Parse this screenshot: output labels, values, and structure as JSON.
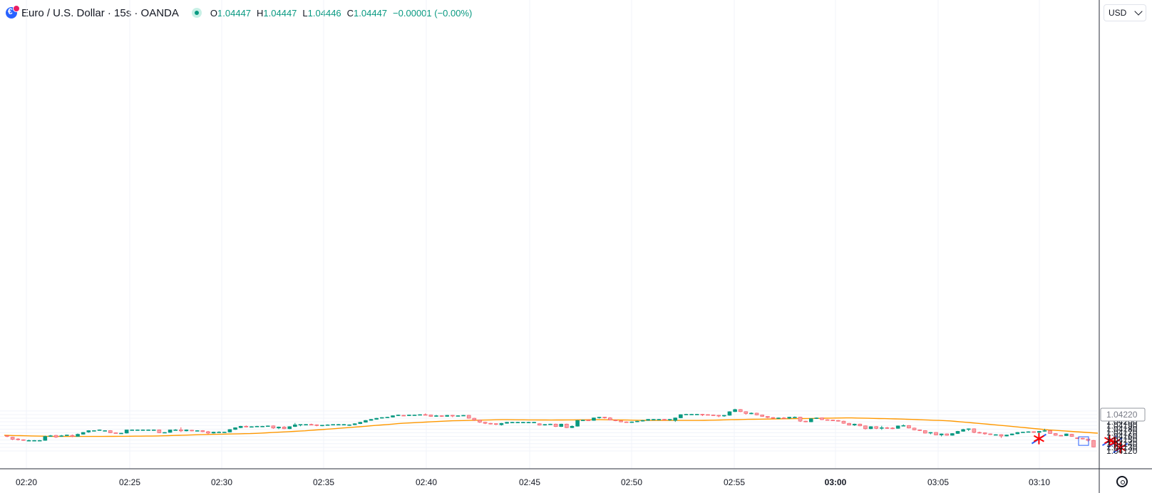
{
  "header": {
    "title": "Euro / U.S. Dollar · 15s · OANDA",
    "ohlc": {
      "o_label": "O",
      "o_value": "1.04447",
      "h_label": "H",
      "h_value": "1.04447",
      "l_label": "L",
      "l_value": "1.04446",
      "c_label": "C",
      "c_value": "1.04447",
      "change": "−0.00001 (−0.00%)"
    }
  },
  "currency_select": {
    "value": "USD"
  },
  "colors": {
    "up": "#089981",
    "down": "#f7525f",
    "ma": "#ff9800",
    "grid": "#f0f3fa",
    "axis": "#131722",
    "marker_red": "#ff0000",
    "marker_blue": "#2962ff"
  },
  "chart_data": {
    "type": "candlestick",
    "ylim": [
      1.0411,
      1.0424
    ],
    "y_ticks": [
      "1.04230",
      "1.04220",
      "1.04210",
      "1.04200",
      "1.04190",
      "1.04180",
      "1.04170",
      "1.04160",
      "1.04150",
      "1.04140",
      "1.04130",
      "1.04120"
    ],
    "y_tick_values": [
      1.0423,
      1.0422,
      1.0421,
      1.042,
      1.0419,
      1.0418,
      1.0417,
      1.0416,
      1.0415,
      1.0414,
      1.0413,
      1.0412
    ],
    "current_price_label": "1.04220",
    "x_ticks": [
      "02:20",
      "02:25",
      "02:30",
      "02:35",
      "02:40",
      "02:45",
      "02:50",
      "02:55",
      "03:00",
      "03:05",
      "03:10"
    ],
    "x_tick_bold": "03:00",
    "candles": [
      [
        1.04162,
        1.04163,
        1.04158,
        1.0416
      ],
      [
        1.04158,
        1.04159,
        1.0415,
        1.04152
      ],
      [
        1.04153,
        1.04155,
        1.04149,
        1.04151
      ],
      [
        1.04151,
        1.04152,
        1.04148,
        1.0415
      ],
      [
        1.04149,
        1.04151,
        1.04148,
        1.04149
      ],
      [
        1.04149,
        1.0415,
        1.04148,
        1.04149
      ],
      [
        1.04149,
        1.0415,
        1.04148,
        1.04149
      ],
      [
        1.04149,
        1.04162,
        1.04148,
        1.0416
      ],
      [
        1.0416,
        1.04164,
        1.04159,
        1.04162
      ],
      [
        1.04163,
        1.04164,
        1.04156,
        1.04158
      ],
      [
        1.04161,
        1.04164,
        1.04159,
        1.04162
      ],
      [
        1.04163,
        1.04165,
        1.04162,
        1.04164
      ],
      [
        1.04163,
        1.04165,
        1.04158,
        1.0416
      ],
      [
        1.0416,
        1.04168,
        1.0416,
        1.04166
      ],
      [
        1.04166,
        1.04172,
        1.04165,
        1.04171
      ],
      [
        1.04172,
        1.04177,
        1.0417,
        1.04176
      ],
      [
        1.04176,
        1.04177,
        1.04175,
        1.04176
      ],
      [
        1.04177,
        1.04179,
        1.04176,
        1.04178
      ],
      [
        1.04176,
        1.04177,
        1.04175,
        1.04176
      ],
      [
        1.04176,
        1.04177,
        1.04169,
        1.0417
      ],
      [
        1.0417,
        1.04171,
        1.04168,
        1.04169
      ],
      [
        1.04169,
        1.0417,
        1.04168,
        1.04169
      ],
      [
        1.04169,
        1.04178,
        1.04168,
        1.04178
      ],
      [
        1.04178,
        1.04179,
        1.04177,
        1.04178
      ],
      [
        1.04178,
        1.04179,
        1.04177,
        1.04178
      ],
      [
        1.04178,
        1.04179,
        1.04177,
        1.04178
      ],
      [
        1.04178,
        1.04179,
        1.04177,
        1.04178
      ],
      [
        1.04178,
        1.04179,
        1.04177,
        1.04178
      ],
      [
        1.04178,
        1.04179,
        1.04169,
        1.0417
      ],
      [
        1.0417,
        1.04172,
        1.04169,
        1.04171
      ],
      [
        1.04171,
        1.04178,
        1.0417,
        1.04178
      ],
      [
        1.04178,
        1.0418,
        1.04177,
        1.04178
      ],
      [
        1.04178,
        1.04185,
        1.04172,
        1.04175
      ],
      [
        1.04175,
        1.04179,
        1.04174,
        1.04178
      ],
      [
        1.04177,
        1.04178,
        1.04174,
        1.04175
      ],
      [
        1.04175,
        1.04177,
        1.04174,
        1.04176
      ],
      [
        1.04176,
        1.04177,
        1.04172,
        1.04173
      ],
      [
        1.04173,
        1.04175,
        1.04166,
        1.04169
      ],
      [
        1.04169,
        1.04173,
        1.04168,
        1.04172
      ],
      [
        1.04172,
        1.04174,
        1.0417,
        1.04172
      ],
      [
        1.04172,
        1.04173,
        1.04171,
        1.04172
      ],
      [
        1.04172,
        1.0418,
        1.04171,
        1.04179
      ],
      [
        1.04179,
        1.04185,
        1.04178,
        1.04184
      ],
      [
        1.04184,
        1.04189,
        1.04183,
        1.04188
      ],
      [
        1.04188,
        1.0419,
        1.04185,
        1.04186
      ],
      [
        1.04186,
        1.04188,
        1.04185,
        1.04187
      ],
      [
        1.04187,
        1.04189,
        1.04186,
        1.04188
      ],
      [
        1.04188,
        1.04189,
        1.04187,
        1.04188
      ],
      [
        1.04188,
        1.0419,
        1.04187,
        1.04189
      ],
      [
        1.04189,
        1.0419,
        1.04181,
        1.04183
      ],
      [
        1.04183,
        1.04187,
        1.0418,
        1.04186
      ],
      [
        1.04186,
        1.04188,
        1.0418,
        1.04181
      ],
      [
        1.04181,
        1.04188,
        1.0418,
        1.04187
      ],
      [
        1.04187,
        1.04197,
        1.04186,
        1.04192
      ],
      [
        1.04192,
        1.04193,
        1.04188,
        1.04193
      ],
      [
        1.04193,
        1.04194,
        1.04192,
        1.04193
      ],
      [
        1.04193,
        1.04195,
        1.04191,
        1.04192
      ],
      [
        1.04192,
        1.04193,
        1.04188,
        1.0419
      ],
      [
        1.04189,
        1.04191,
        1.04188,
        1.04191
      ],
      [
        1.04191,
        1.04193,
        1.0419,
        1.04192
      ],
      [
        1.04192,
        1.04193,
        1.04191,
        1.04193
      ],
      [
        1.04193,
        1.04194,
        1.04192,
        1.04193
      ],
      [
        1.04193,
        1.04194,
        1.04192,
        1.04193
      ],
      [
        1.04191,
        1.04193,
        1.04189,
        1.04192
      ],
      [
        1.04192,
        1.04196,
        1.04191,
        1.04195
      ],
      [
        1.04195,
        1.042,
        1.04194,
        1.04199
      ],
      [
        1.04199,
        1.04205,
        1.04198,
        1.04204
      ],
      [
        1.04204,
        1.04208,
        1.04203,
        1.04207
      ],
      [
        1.04207,
        1.04211,
        1.04206,
        1.0421
      ],
      [
        1.0421,
        1.04213,
        1.04209,
        1.04212
      ],
      [
        1.04212,
        1.04214,
        1.04211,
        1.04213
      ],
      [
        1.04213,
        1.04218,
        1.04212,
        1.04217
      ],
      [
        1.04217,
        1.0422,
        1.04216,
        1.04219
      ],
      [
        1.04218,
        1.04219,
        1.04216,
        1.04217
      ],
      [
        1.04217,
        1.0422,
        1.04216,
        1.04219
      ],
      [
        1.04219,
        1.0422,
        1.04218,
        1.04219
      ],
      [
        1.04219,
        1.04221,
        1.04218,
        1.0422
      ],
      [
        1.0422,
        1.04223,
        1.04219,
        1.04219
      ],
      [
        1.04219,
        1.0422,
        1.04214,
        1.04215
      ],
      [
        1.04215,
        1.04219,
        1.04214,
        1.04217
      ],
      [
        1.04217,
        1.04218,
        1.04214,
        1.04215
      ],
      [
        1.04215,
        1.04219,
        1.04214,
        1.04218
      ],
      [
        1.04218,
        1.04219,
        1.04213,
        1.04216
      ],
      [
        1.04216,
        1.04218,
        1.04215,
        1.04217
      ],
      [
        1.04217,
        1.04219,
        1.04216,
        1.04218
      ],
      [
        1.04218,
        1.04219,
        1.04209,
        1.0421
      ],
      [
        1.0421,
        1.04211,
        1.04203,
        1.04205
      ],
      [
        1.04205,
        1.04206,
        1.04197,
        1.04199
      ],
      [
        1.04199,
        1.042,
        1.04194,
        1.04196
      ],
      [
        1.04196,
        1.04197,
        1.04193,
        1.04195
      ],
      [
        1.04195,
        1.04196,
        1.04191,
        1.04193
      ],
      [
        1.04192,
        1.04197,
        1.0419,
        1.04196
      ],
      [
        1.04196,
        1.042,
        1.04195,
        1.04199
      ],
      [
        1.04199,
        1.042,
        1.04198,
        1.04199
      ],
      [
        1.04199,
        1.042,
        1.04198,
        1.04199
      ],
      [
        1.04199,
        1.042,
        1.04198,
        1.04199
      ],
      [
        1.04199,
        1.042,
        1.04198,
        1.04199
      ],
      [
        1.04199,
        1.042,
        1.04198,
        1.04199
      ],
      [
        1.04195,
        1.04196,
        1.0419,
        1.04191
      ],
      [
        1.04191,
        1.04194,
        1.0419,
        1.04193
      ],
      [
        1.04193,
        1.04195,
        1.04192,
        1.04194
      ],
      [
        1.04194,
        1.04195,
        1.04186,
        1.04187
      ],
      [
        1.04187,
        1.04195,
        1.04186,
        1.04194
      ],
      [
        1.04194,
        1.04195,
        1.04183,
        1.04184
      ],
      [
        1.04184,
        1.0419,
        1.04183,
        1.04188
      ],
      [
        1.04188,
        1.04205,
        1.04187,
        1.04204
      ],
      [
        1.04204,
        1.04206,
        1.04203,
        1.04205
      ],
      [
        1.04205,
        1.04206,
        1.04203,
        1.04204
      ],
      [
        1.04204,
        1.04212,
        1.04203,
        1.04211
      ],
      [
        1.04211,
        1.04214,
        1.04209,
        1.04213
      ],
      [
        1.04213,
        1.04214,
        1.04209,
        1.04211
      ],
      [
        1.04211,
        1.04213,
        1.04204,
        1.04205
      ],
      [
        1.04205,
        1.04206,
        1.04202,
        1.04203
      ],
      [
        1.04203,
        1.04204,
        1.04199,
        1.042
      ],
      [
        1.042,
        1.04201,
        1.04198,
        1.04199
      ],
      [
        1.04199,
        1.04201,
        1.04198,
        1.042
      ],
      [
        1.042,
        1.04203,
        1.04199,
        1.04202
      ],
      [
        1.04202,
        1.04205,
        1.04201,
        1.04204
      ],
      [
        1.04204,
        1.04208,
        1.04203,
        1.04207
      ],
      [
        1.04207,
        1.04208,
        1.04205,
        1.04207
      ],
      [
        1.04207,
        1.04208,
        1.04206,
        1.04207
      ],
      [
        1.04207,
        1.04208,
        1.04204,
        1.04205
      ],
      [
        1.04205,
        1.04208,
        1.04203,
        1.04207
      ],
      [
        1.04204,
        1.04212,
        1.042,
        1.04211
      ],
      [
        1.04211,
        1.04221,
        1.0421,
        1.0422
      ],
      [
        1.0422,
        1.04222,
        1.04219,
        1.04221
      ],
      [
        1.04221,
        1.04222,
        1.0422,
        1.04221
      ],
      [
        1.04221,
        1.04222,
        1.0422,
        1.04221
      ],
      [
        1.04221,
        1.04222,
        1.04216,
        1.0422
      ],
      [
        1.0422,
        1.04221,
        1.04218,
        1.04219
      ],
      [
        1.04219,
        1.0422,
        1.04217,
        1.04218
      ],
      [
        1.04218,
        1.04219,
        1.04213,
        1.04216
      ],
      [
        1.04216,
        1.04219,
        1.04214,
        1.04218
      ],
      [
        1.04218,
        1.04229,
        1.04217,
        1.04228
      ],
      [
        1.04228,
        1.04236,
        1.04227,
        1.04234
      ],
      [
        1.04234,
        1.04235,
        1.04227,
        1.04228
      ],
      [
        1.04228,
        1.04229,
        1.0422,
        1.04223
      ],
      [
        1.04223,
        1.04226,
        1.04221,
        1.04224
      ],
      [
        1.04224,
        1.04225,
        1.04218,
        1.04219
      ],
      [
        1.04219,
        1.0422,
        1.04214,
        1.04215
      ],
      [
        1.04215,
        1.04216,
        1.0421,
        1.04212
      ],
      [
        1.04212,
        1.04213,
        1.04208,
        1.0421
      ],
      [
        1.0421,
        1.04212,
        1.04208,
        1.04211
      ],
      [
        1.04211,
        1.04213,
        1.04209,
        1.0421
      ],
      [
        1.0421,
        1.04214,
        1.04208,
        1.04213
      ],
      [
        1.04213,
        1.04215,
        1.04211,
        1.04213
      ],
      [
        1.04213,
        1.04214,
        1.042,
        1.04202
      ],
      [
        1.04202,
        1.04203,
        1.04199,
        1.042
      ],
      [
        1.042,
        1.0421,
        1.04199,
        1.04209
      ],
      [
        1.04209,
        1.04212,
        1.04208,
        1.04211
      ],
      [
        1.04211,
        1.04212,
        1.04205,
        1.04206
      ],
      [
        1.04206,
        1.04207,
        1.04204,
        1.04205
      ],
      [
        1.04205,
        1.04206,
        1.04203,
        1.04204
      ],
      [
        1.04204,
        1.04205,
        1.04201,
        1.04202
      ],
      [
        1.04202,
        1.04203,
        1.04195,
        1.04196
      ],
      [
        1.04196,
        1.04197,
        1.0419,
        1.04191
      ],
      [
        1.04191,
        1.04195,
        1.04189,
        1.04194
      ],
      [
        1.04194,
        1.04195,
        1.04188,
        1.04189
      ],
      [
        1.04189,
        1.0419,
        1.04179,
        1.04181
      ],
      [
        1.04181,
        1.04188,
        1.0418,
        1.04187
      ],
      [
        1.04187,
        1.04188,
        1.0418,
        1.04182
      ],
      [
        1.04182,
        1.04189,
        1.04178,
        1.04184
      ],
      [
        1.04184,
        1.04186,
        1.04181,
        1.04183
      ],
      [
        1.04183,
        1.04185,
        1.0418,
        1.04182
      ],
      [
        1.04182,
        1.0419,
        1.04181,
        1.04189
      ],
      [
        1.04189,
        1.04193,
        1.04188,
        1.0419
      ],
      [
        1.0419,
        1.04191,
        1.04182,
        1.04183
      ],
      [
        1.04183,
        1.04184,
        1.04177,
        1.04178
      ],
      [
        1.04178,
        1.04179,
        1.04175,
        1.04176
      ],
      [
        1.04176,
        1.04177,
        1.04168,
        1.04169
      ],
      [
        1.04169,
        1.04172,
        1.04166,
        1.04171
      ],
      [
        1.04171,
        1.04172,
        1.04163,
        1.04164
      ],
      [
        1.04164,
        1.04168,
        1.0416,
        1.04167
      ],
      [
        1.04167,
        1.04168,
        1.04162,
        1.04163
      ],
      [
        1.04163,
        1.04169,
        1.04162,
        1.04168
      ],
      [
        1.04168,
        1.04175,
        1.04167,
        1.04174
      ],
      [
        1.04174,
        1.04181,
        1.04173,
        1.04179
      ],
      [
        1.04179,
        1.04182,
        1.04175,
        1.04181
      ],
      [
        1.04181,
        1.04182,
        1.04169,
        1.04171
      ],
      [
        1.04171,
        1.04173,
        1.04168,
        1.0417
      ],
      [
        1.0417,
        1.04171,
        1.04165,
        1.04167
      ],
      [
        1.04167,
        1.04168,
        1.04164,
        1.04165
      ],
      [
        1.04165,
        1.04166,
        1.04164,
        1.04165
      ],
      [
        1.04165,
        1.04166,
        1.04156,
        1.04161
      ],
      [
        1.04161,
        1.04165,
        1.0416,
        1.04164
      ],
      [
        1.04164,
        1.04168,
        1.04163,
        1.04167
      ],
      [
        1.04167,
        1.04172,
        1.04166,
        1.04171
      ],
      [
        1.04171,
        1.04173,
        1.0417,
        1.04172
      ],
      [
        1.04172,
        1.04174,
        1.04171,
        1.04173
      ],
      [
        1.04173,
        1.04174,
        1.0417,
        1.04171
      ],
      [
        1.04171,
        1.04175,
        1.0417,
        1.04174
      ],
      [
        1.04174,
        1.04181,
        1.04173,
        1.04176
      ],
      [
        1.04176,
        1.04177,
        1.04167,
        1.04168
      ],
      [
        1.04168,
        1.04169,
        1.04162,
        1.04163
      ],
      [
        1.04163,
        1.04164,
        1.04161,
        1.04162
      ],
      [
        1.04162,
        1.04168,
        1.04161,
        1.04167
      ],
      [
        1.04166,
        1.04167,
        1.04159,
        1.0416
      ],
      [
        1.04156,
        1.04157,
        1.04153,
        1.04155
      ],
      [
        1.04155,
        1.04156,
        1.04152,
        1.04153
      ],
      [
        1.04153,
        1.04154,
        1.04146,
        1.04149
      ],
      [
        1.04149,
        1.0415,
        1.0413,
        1.04131
      ]
    ],
    "ma": [
      1.04163,
      1.0416,
      1.0416,
      1.04161,
      1.04165,
      1.04168,
      1.04175,
      1.04185,
      1.04196,
      1.04203,
      1.04206,
      1.04205,
      1.04206,
      1.04204,
      1.04204,
      1.04207,
      1.04209,
      1.04211,
      1.04208,
      1.04203,
      1.04191,
      1.04178,
      1.04169
    ]
  },
  "annotations": {
    "markers": [
      {
        "time_index": 191,
        "price": 1.04154
      },
      {
        "time_index": 204,
        "price": 1.04149
      },
      {
        "time_index": 205,
        "price": 1.04144
      },
      {
        "time_index": 206,
        "price": 1.04129
      }
    ]
  }
}
